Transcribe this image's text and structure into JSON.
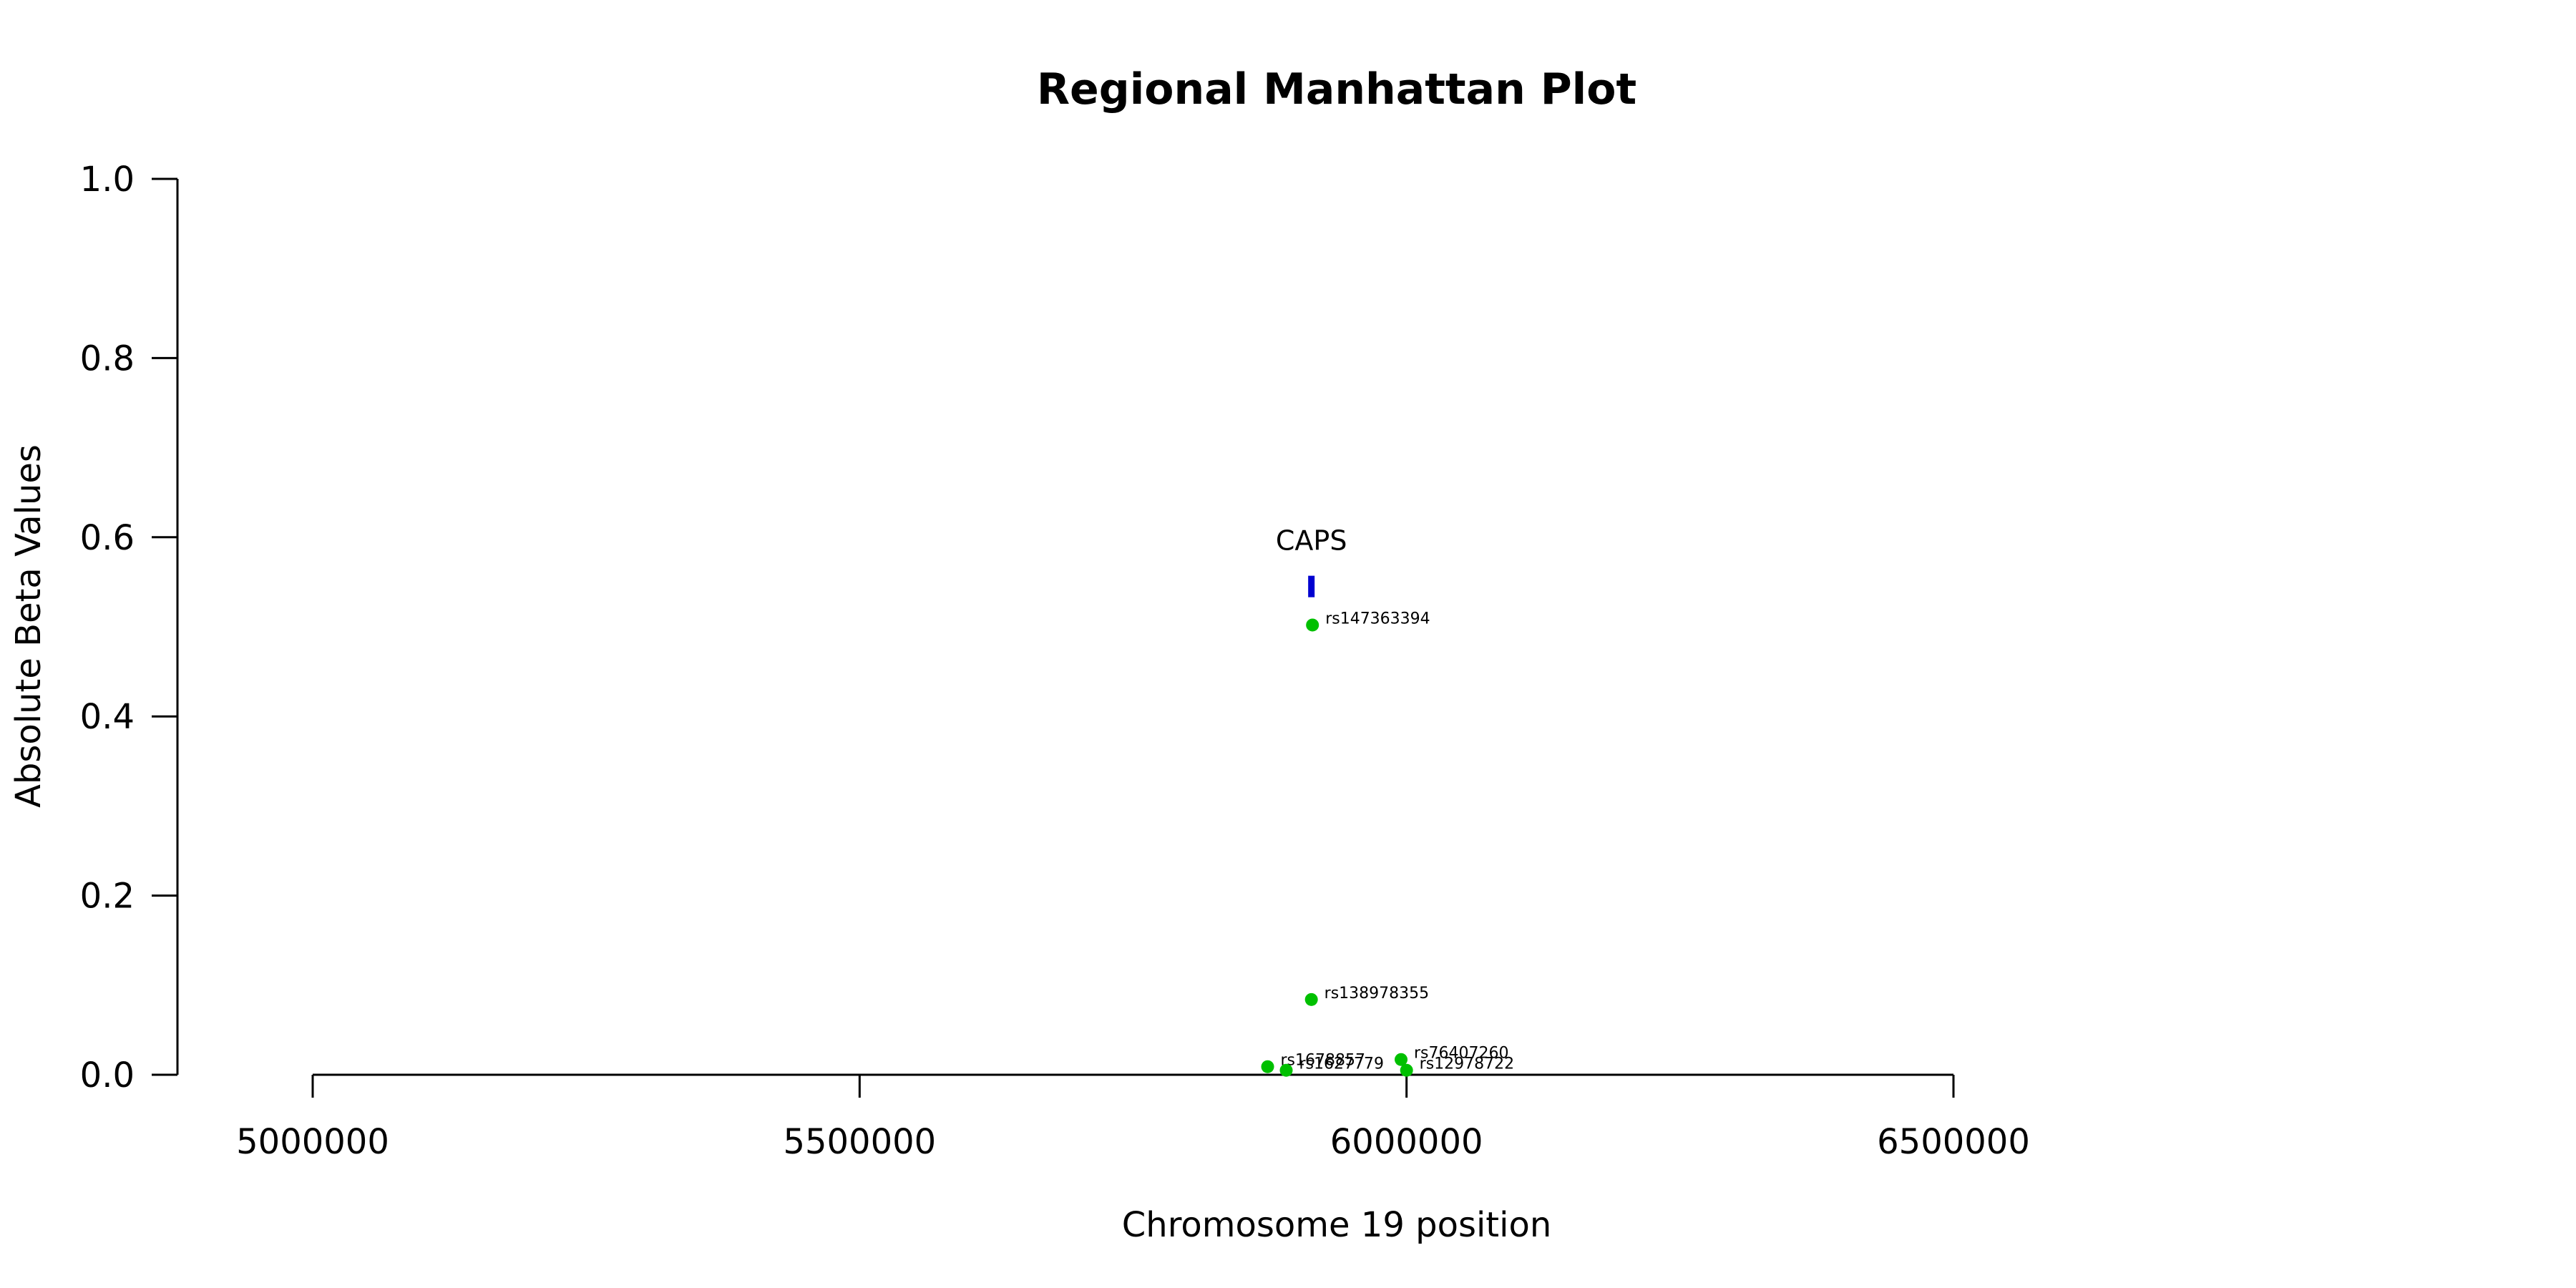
{
  "chart_data": {
    "type": "scatter",
    "title": "Regional Manhattan Plot",
    "xlabel": "Chromosome 19 position",
    "ylabel": "Absolute Beta Values",
    "xlim": [
      5000000,
      6500000
    ],
    "ylim": [
      0,
      1
    ],
    "x_ticks": [
      "5000000",
      "5500000",
      "6000000",
      "6500000"
    ],
    "y_ticks": [
      "0.0",
      "0.2",
      "0.4",
      "0.6",
      "0.8",
      "1.0"
    ],
    "grid": false,
    "colors": {
      "points": "#00c000",
      "gene": "#0000d0",
      "axis": "#000000"
    },
    "genes": [
      {
        "name": "CAPS",
        "x": 5913000,
        "y_bottom": 0.533,
        "y_top": 0.557
      }
    ],
    "points": [
      {
        "label": "rs147363394",
        "x": 5914000,
        "y": 0.502
      },
      {
        "label": "rs138978355",
        "x": 5913000,
        "y": 0.084
      },
      {
        "label": "rs1678857",
        "x": 5873000,
        "y": 0.009
      },
      {
        "label": "rs1627779",
        "x": 5890000,
        "y": 0.005
      },
      {
        "label": "rs76407260",
        "x": 5995000,
        "y": 0.017
      },
      {
        "label": "rs12978722",
        "x": 6000000,
        "y": 0.005
      }
    ]
  }
}
